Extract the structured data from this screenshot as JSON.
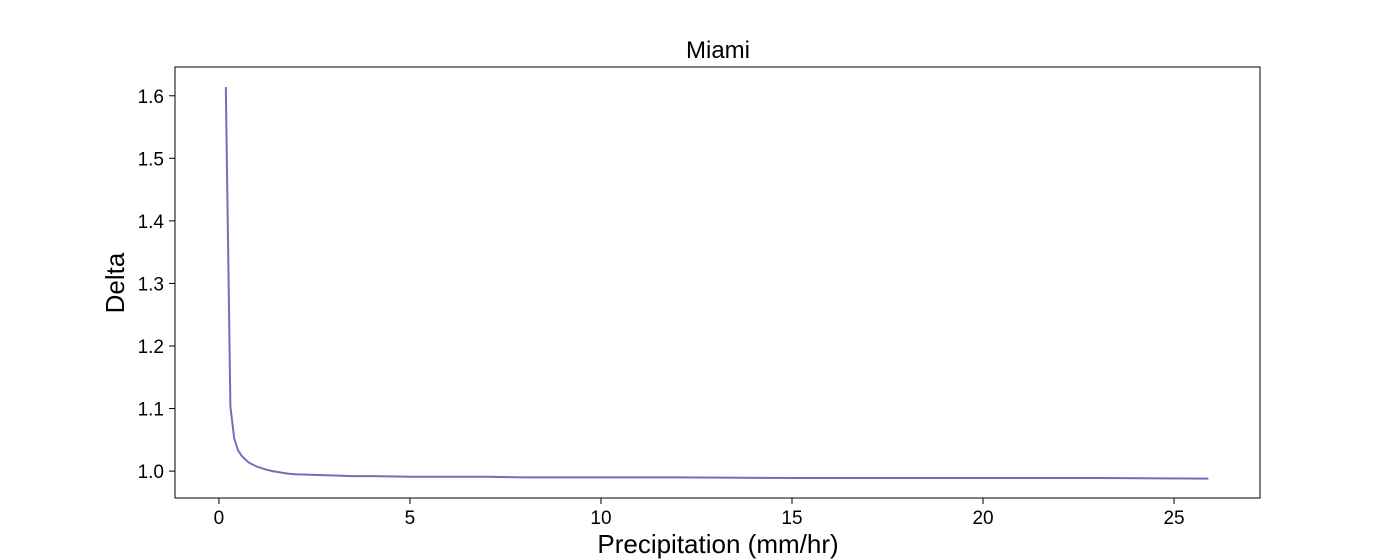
{
  "chart_data": {
    "type": "line",
    "title": "Miami",
    "xlabel": "Precipitation (mm/hr)",
    "ylabel": "Delta",
    "xlim": [
      -1.15,
      27.25
    ],
    "ylim": [
      0.957,
      1.646
    ],
    "xticks": [
      0,
      5,
      10,
      15,
      20,
      25
    ],
    "xtick_labels": [
      "0",
      "5",
      "10",
      "15",
      "20",
      "25"
    ],
    "yticks": [
      1.0,
      1.1,
      1.2,
      1.3,
      1.4,
      1.5,
      1.6
    ],
    "ytick_labels": [
      "1.0",
      "1.1",
      "1.2",
      "1.3",
      "1.4",
      "1.5",
      "1.6"
    ],
    "grid": false,
    "legend": "none",
    "series": [
      {
        "color": "#7570b3",
        "x": [
          0.18,
          0.3,
          0.4,
          0.5,
          0.6,
          0.7,
          0.8,
          0.9,
          1.0,
          1.2,
          1.4,
          1.6,
          1.8,
          2.0,
          2.5,
          3.0,
          3.5,
          4.0,
          5.0,
          6.0,
          7.0,
          8.0,
          10.0,
          12.0,
          15.0,
          18.0,
          20.0,
          23.0,
          25.9
        ],
        "y": [
          1.614,
          1.103,
          1.052,
          1.033,
          1.024,
          1.018,
          1.013,
          1.01,
          1.007,
          1.003,
          1.0,
          0.998,
          0.996,
          0.995,
          0.994,
          0.993,
          0.992,
          0.992,
          0.991,
          0.991,
          0.991,
          0.99,
          0.99,
          0.99,
          0.989,
          0.989,
          0.989,
          0.989,
          0.988
        ]
      }
    ]
  }
}
